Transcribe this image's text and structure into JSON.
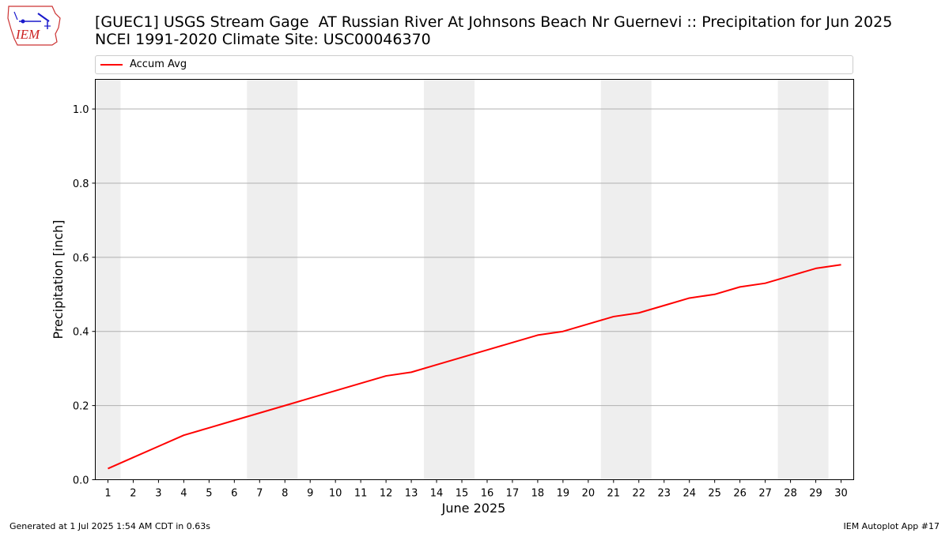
{
  "header": {
    "title_line1": "[GUEC1] USGS Stream Gage  AT Russian River At Johnsons Beach Nr Guernevi :: Precipitation for Jun 2025",
    "title_line2": "NCEI 1991-2020 Climate Site: USC00046370"
  },
  "logo": {
    "text": "IEM",
    "icon": "iem-logo-icon"
  },
  "footer": {
    "left": "Generated at 1 Jul 2025 1:54 AM CDT in 0.63s",
    "right": "IEM Autoplot App #17"
  },
  "chart_data": {
    "type": "line",
    "title": "[GUEC1] USGS Stream Gage  AT Russian River At Johnsons Beach Nr Guernevi :: Precipitation for Jun 2025",
    "subtitle": "NCEI 1991-2020 Climate Site: USC00046370",
    "xlabel": "June 2025",
    "ylabel": "Precipitation [inch]",
    "x": [
      1,
      2,
      3,
      4,
      5,
      6,
      7,
      8,
      9,
      10,
      11,
      12,
      13,
      14,
      15,
      16,
      17,
      18,
      19,
      20,
      21,
      22,
      23,
      24,
      25,
      26,
      27,
      28,
      29,
      30
    ],
    "xticks": [
      "1",
      "2",
      "3",
      "4",
      "5",
      "6",
      "7",
      "8",
      "9",
      "10",
      "11",
      "12",
      "13",
      "14",
      "15",
      "16",
      "17",
      "18",
      "19",
      "20",
      "21",
      "22",
      "23",
      "24",
      "25",
      "26",
      "27",
      "28",
      "29",
      "30"
    ],
    "yticks": [
      "0.0",
      "0.2",
      "0.4",
      "0.6",
      "0.8",
      "1.0"
    ],
    "ylim": [
      0,
      1.08
    ],
    "xlim": [
      0.5,
      30.5
    ],
    "grid": "horizontal",
    "legend_position": "top",
    "weekend_shading": [
      [
        0.5,
        1.5
      ],
      [
        6.5,
        8.5
      ],
      [
        13.5,
        15.5
      ],
      [
        20.5,
        22.5
      ],
      [
        27.5,
        29.5
      ]
    ],
    "series": [
      {
        "name": "Accum Avg",
        "color": "#ff0000",
        "values": [
          0.03,
          0.06,
          0.09,
          0.12,
          0.14,
          0.16,
          0.18,
          0.2,
          0.22,
          0.24,
          0.26,
          0.28,
          0.29,
          0.31,
          0.33,
          0.35,
          0.37,
          0.39,
          0.4,
          0.42,
          0.44,
          0.45,
          0.47,
          0.49,
          0.5,
          0.52,
          0.53,
          0.55,
          0.57,
          0.58
        ]
      }
    ]
  }
}
